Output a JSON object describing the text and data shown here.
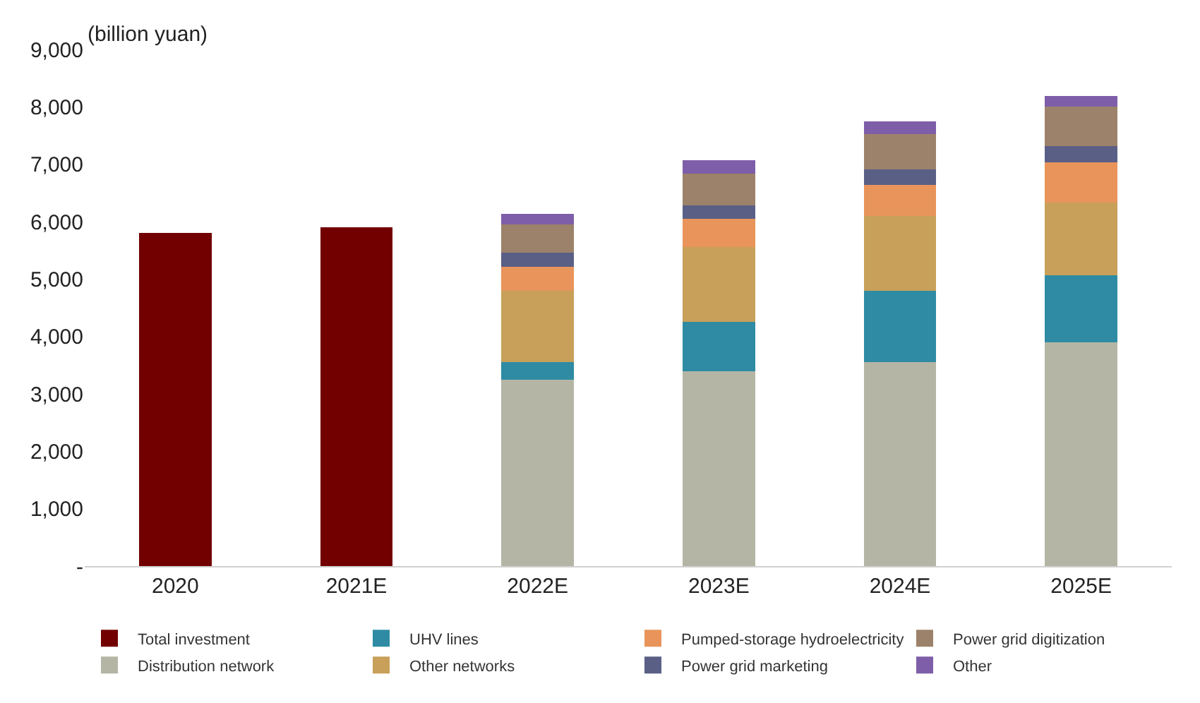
{
  "chart_data": {
    "type": "bar",
    "stacked": true,
    "ylabel": "(billion yuan)",
    "categories": [
      "2020",
      "2021E",
      "2022E",
      "2023E",
      "2024E",
      "2025E"
    ],
    "series": [
      {
        "name": "Total investment",
        "color": "#720000",
        "values": [
          5800,
          5900,
          null,
          null,
          null,
          null
        ]
      },
      {
        "name": "Distribution network",
        "color": "#b5b5a5",
        "values": [
          null,
          null,
          3240,
          3390,
          3550,
          3900
        ]
      },
      {
        "name": "UHV lines",
        "color": "#2e8ba3",
        "values": [
          null,
          null,
          310,
          860,
          1240,
          1170
        ]
      },
      {
        "name": "Other networks",
        "color": "#c8a05a",
        "values": [
          null,
          null,
          1240,
          1310,
          1310,
          1260
        ]
      },
      {
        "name": "Pumped-storage hydroelectricity",
        "color": "#e8945a",
        "values": [
          null,
          null,
          420,
          490,
          540,
          700
        ]
      },
      {
        "name": "Power grid marketing",
        "color": "#5a5f86",
        "values": [
          null,
          null,
          250,
          230,
          270,
          290
        ]
      },
      {
        "name": "Power grid digitization",
        "color": "#9c826a",
        "values": [
          null,
          null,
          490,
          560,
          610,
          680
        ]
      },
      {
        "name": "Other",
        "color": "#7e5ea8",
        "values": [
          null,
          null,
          190,
          230,
          230,
          190
        ]
      }
    ],
    "ylim": [
      0,
      9000
    ],
    "yticks": [
      {
        "value": 0,
        "label": "-"
      },
      {
        "value": 1000,
        "label": "1,000"
      },
      {
        "value": 2000,
        "label": "2,000"
      },
      {
        "value": 3000,
        "label": "3,000"
      },
      {
        "value": 4000,
        "label": "4,000"
      },
      {
        "value": 5000,
        "label": "5,000"
      },
      {
        "value": 6000,
        "label": "6,000"
      },
      {
        "value": 7000,
        "label": "7,000"
      },
      {
        "value": 8000,
        "label": "8,000"
      },
      {
        "value": 9000,
        "label": "9,000"
      }
    ],
    "legend": "bottom"
  }
}
